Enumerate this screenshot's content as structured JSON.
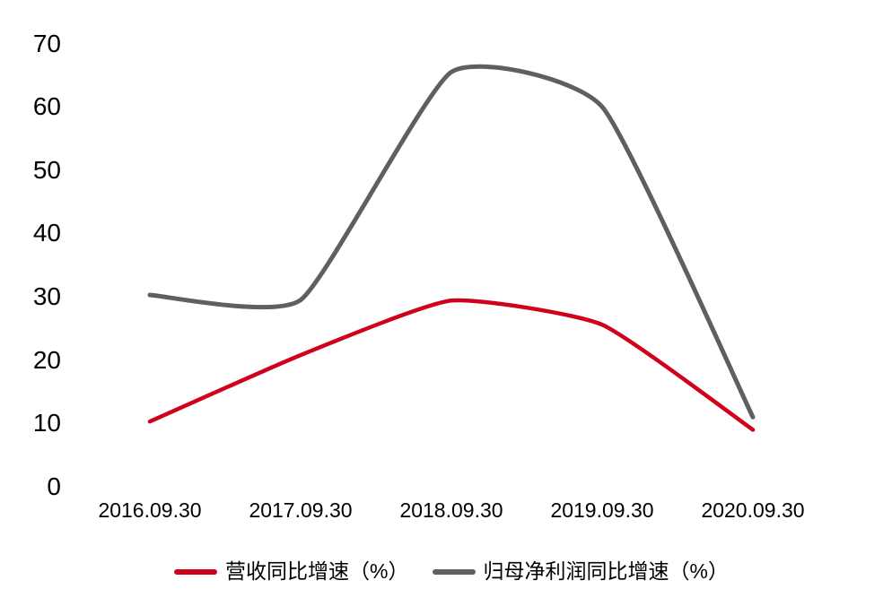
{
  "chart_data": {
    "type": "line",
    "smooth": true,
    "title": "",
    "xlabel": "",
    "ylabel": "",
    "categories": [
      "2016.09.30",
      "2017.09.30",
      "2018.09.30",
      "2019.09.30",
      "2020.09.30"
    ],
    "series": [
      {
        "name": "营收同比增速（%）",
        "color": "#d0021b",
        "stroke_width": 4.5,
        "values": [
          10.3,
          20.8,
          29.4,
          25.6,
          9.0
        ]
      },
      {
        "name": "归母净利润同比增速（%）",
        "color": "#5f5f5f",
        "stroke_width": 5,
        "values": [
          30.3,
          29.5,
          65.5,
          60.0,
          11.0
        ]
      }
    ],
    "ylim": [
      0,
      70
    ],
    "y_ticks": [
      0,
      10,
      20,
      30,
      40,
      50,
      60,
      70
    ],
    "grid": false,
    "axis_lines": false,
    "legend_position": "bottom",
    "background_color": "#ffffff",
    "text_color": "#000000"
  }
}
